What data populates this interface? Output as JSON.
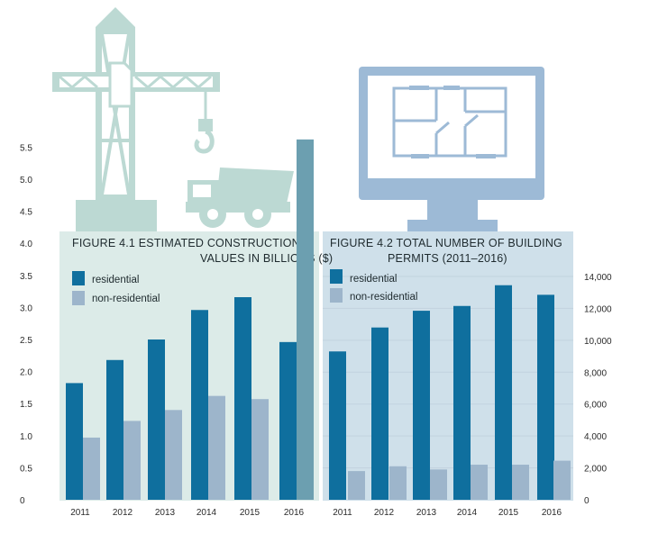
{
  "colors": {
    "residential": "#0f6f9e",
    "non_residential": "#9db5cb",
    "panel_left": "#dcebe8",
    "panel_right": "#cfe0ea",
    "crane": "#bcd9d3",
    "monitor": "#9dbad6",
    "tall_bar_2016": "#6c9fb0"
  },
  "icons": {
    "left": "construction-crane-truck-icon",
    "right": "monitor-floorplan-icon"
  },
  "chart_data": [
    {
      "type": "bar",
      "title": "FIGURE 4.1 ESTIMATED CONSTRUCTION",
      "title_line2": "VALUES IN BILLIONS ($)",
      "categories": [
        "2011",
        "2012",
        "2013",
        "2014",
        "2015",
        "2016"
      ],
      "series": [
        {
          "name": "residential",
          "values": [
            1.82,
            2.18,
            2.5,
            2.96,
            3.16,
            2.46
          ]
        },
        {
          "name": "non-residential",
          "values": [
            0.97,
            1.23,
            1.4,
            1.62,
            1.57,
            5.62
          ]
        }
      ],
      "yticks": [
        "0",
        "0.5",
        "1.0",
        "1.5",
        "2.0",
        "2.5",
        "3.0",
        "3.5",
        "4.0",
        "4.5",
        "5.0",
        "5.5"
      ],
      "ylim": [
        0,
        5.5
      ],
      "axis_side": "left",
      "legend": "top-left",
      "grid": false
    },
    {
      "type": "bar",
      "title": "FIGURE 4.2  TOTAL NUMBER OF BUILDING",
      "title_line2": "PERMITS (2011–2016)",
      "categories": [
        "2011",
        "2012",
        "2013",
        "2014",
        "2015",
        "2016"
      ],
      "series": [
        {
          "name": "residential",
          "values": [
            9300,
            10800,
            11850,
            12150,
            13450,
            12850
          ]
        },
        {
          "name": "non-residential",
          "values": [
            1800,
            2100,
            1900,
            2200,
            2200,
            2450
          ]
        }
      ],
      "yticks": [
        "0",
        "2,000",
        "4,000",
        "6,000",
        "8,000",
        "10,000",
        "12,000",
        "14,000"
      ],
      "ylim": [
        0,
        14000
      ],
      "axis_side": "right",
      "legend": "top-left",
      "grid": true
    }
  ]
}
